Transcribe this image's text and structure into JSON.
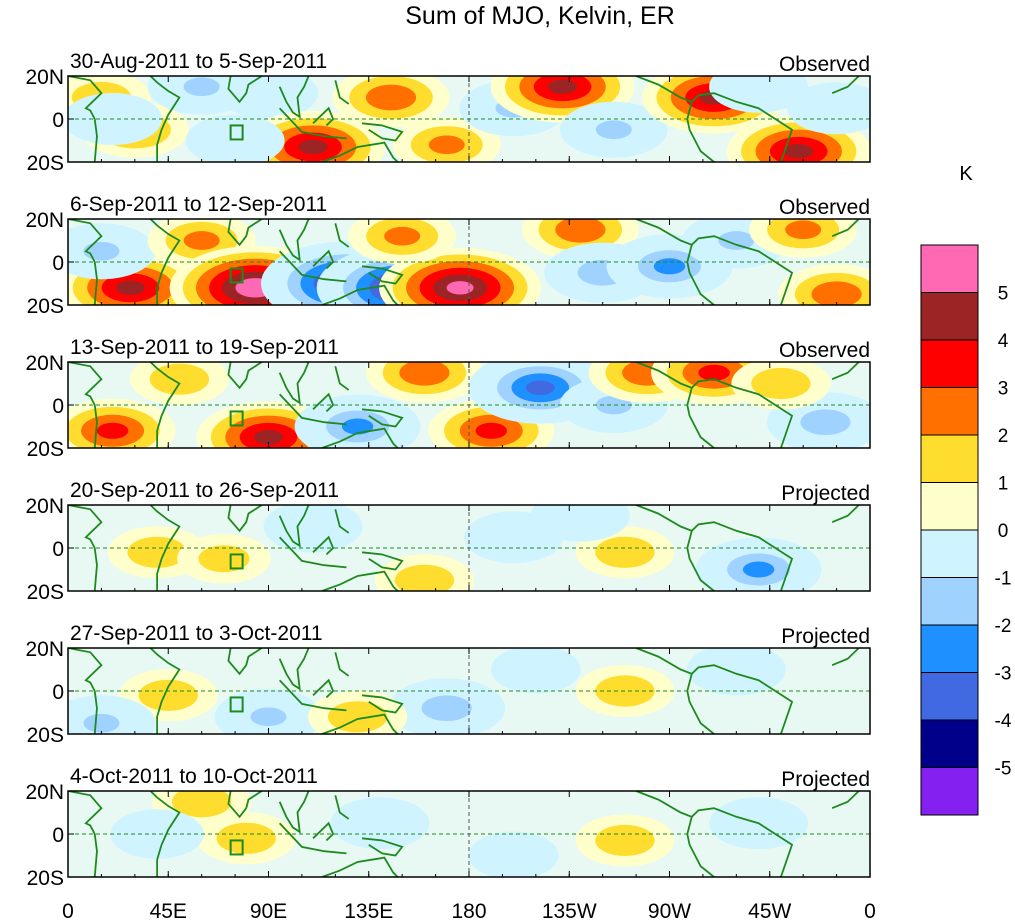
{
  "chart_data": {
    "type": "heatmap",
    "title": "Sum of MJO, Kelvin, ER",
    "units_label": "K",
    "x_ticks": [
      "0",
      "45E",
      "90E",
      "135E",
      "180",
      "135W",
      "90W",
      "45W",
      "0"
    ],
    "y_ticks": [
      "20N",
      "0",
      "20S"
    ],
    "lon_range": [
      0,
      360
    ],
    "lat_range": [
      -20,
      20
    ],
    "colorbar": {
      "labels": [
        "5",
        "4",
        "3",
        "2",
        "1",
        "0",
        "-1",
        "-2",
        "-3",
        "-4",
        "-5"
      ],
      "levels": [
        5,
        4,
        3,
        2,
        1,
        0,
        -1,
        -2,
        -3,
        -4,
        -5
      ],
      "colors": [
        "#FF69B4",
        "#9C2424",
        "#FF0000",
        "#FF7000",
        "#FFDD2E",
        "#FFFFCC",
        "#D0F4FF",
        "#A0D2FF",
        "#1E90FF",
        "#4169E1",
        "#00008B",
        "#8420F0"
      ]
    },
    "panels": [
      {
        "dates": "30-Aug-2011 to 5-Sep-2011",
        "kind": "Observed",
        "anomalies": [
          [
            15,
            10,
            1.5
          ],
          [
            30,
            -5,
            2
          ],
          [
            20,
            0,
            -1.5
          ],
          [
            60,
            15,
            -2
          ],
          [
            90,
            12,
            -1.5
          ],
          [
            110,
            -13,
            4
          ],
          [
            75,
            -10,
            -1.5
          ],
          [
            145,
            10,
            2.5
          ],
          [
            170,
            -12,
            2
          ],
          [
            200,
            5,
            -2
          ],
          [
            222,
            15,
            4
          ],
          [
            245,
            -5,
            -2
          ],
          [
            290,
            10,
            4
          ],
          [
            310,
            15,
            -1.5
          ],
          [
            328,
            -15,
            4
          ],
          [
            345,
            5,
            -1.5
          ]
        ]
      },
      {
        "dates": "6-Sep-2011 to 12-Sep-2011",
        "kind": "Observed",
        "anomalies": [
          [
            28,
            -12,
            4
          ],
          [
            15,
            5,
            -2
          ],
          [
            60,
            10,
            2
          ],
          [
            84,
            -12,
            5.5
          ],
          [
            125,
            -10,
            -5.5
          ],
          [
            150,
            -12,
            -5.5
          ],
          [
            176,
            -12,
            5
          ],
          [
            150,
            12,
            2
          ],
          [
            230,
            15,
            2.5
          ],
          [
            240,
            -5,
            -2.5
          ],
          [
            270,
            -2,
            -3
          ],
          [
            300,
            10,
            -2
          ],
          [
            345,
            -15,
            2.5
          ],
          [
            330,
            15,
            2
          ]
        ]
      },
      {
        "dates": "13-Sep-2011 to 19-Sep-2011",
        "kind": "Observed",
        "anomalies": [
          [
            20,
            -12,
            3
          ],
          [
            50,
            12,
            1.5
          ],
          [
            90,
            -15,
            4
          ],
          [
            130,
            -10,
            -3
          ],
          [
            160,
            15,
            2.5
          ],
          [
            190,
            -12,
            3
          ],
          [
            212,
            8,
            -4
          ],
          [
            245,
            0,
            -2
          ],
          [
            260,
            15,
            2.5
          ],
          [
            290,
            15,
            3
          ],
          [
            340,
            -8,
            -2.5
          ],
          [
            320,
            10,
            1.5
          ]
        ]
      },
      {
        "dates": "20-Sep-2011 to 26-Sep-2011",
        "kind": "Projected",
        "anomalies": [
          [
            40,
            -2,
            1.5
          ],
          [
            110,
            10,
            -1.5
          ],
          [
            160,
            -15,
            1.5
          ],
          [
            200,
            5,
            -1.5
          ],
          [
            250,
            -2,
            1.5
          ],
          [
            310,
            -10,
            -3
          ],
          [
            70,
            -5,
            1.2
          ],
          [
            230,
            15,
            -1.5
          ]
        ]
      },
      {
        "dates": "27-Sep-2011 to 3-Oct-2011",
        "kind": "Projected",
        "anomalies": [
          [
            45,
            -2,
            1.5
          ],
          [
            15,
            -15,
            -2
          ],
          [
            90,
            -12,
            -2
          ],
          [
            170,
            -8,
            -2.5
          ],
          [
            130,
            -12,
            1.5
          ],
          [
            250,
            0,
            1.5
          ],
          [
            300,
            10,
            -1.5
          ],
          [
            210,
            10,
            -1
          ]
        ]
      },
      {
        "dates": "4-Oct-2011 to 10-Oct-2011",
        "kind": "Projected",
        "anomalies": [
          [
            60,
            15,
            1.5
          ],
          [
            80,
            -2,
            1.5
          ],
          [
            40,
            0,
            -1.2
          ],
          [
            140,
            5,
            -1.5
          ],
          [
            250,
            -3,
            1.5
          ],
          [
            310,
            5,
            -1.5
          ],
          [
            200,
            -10,
            -1
          ]
        ]
      }
    ]
  }
}
